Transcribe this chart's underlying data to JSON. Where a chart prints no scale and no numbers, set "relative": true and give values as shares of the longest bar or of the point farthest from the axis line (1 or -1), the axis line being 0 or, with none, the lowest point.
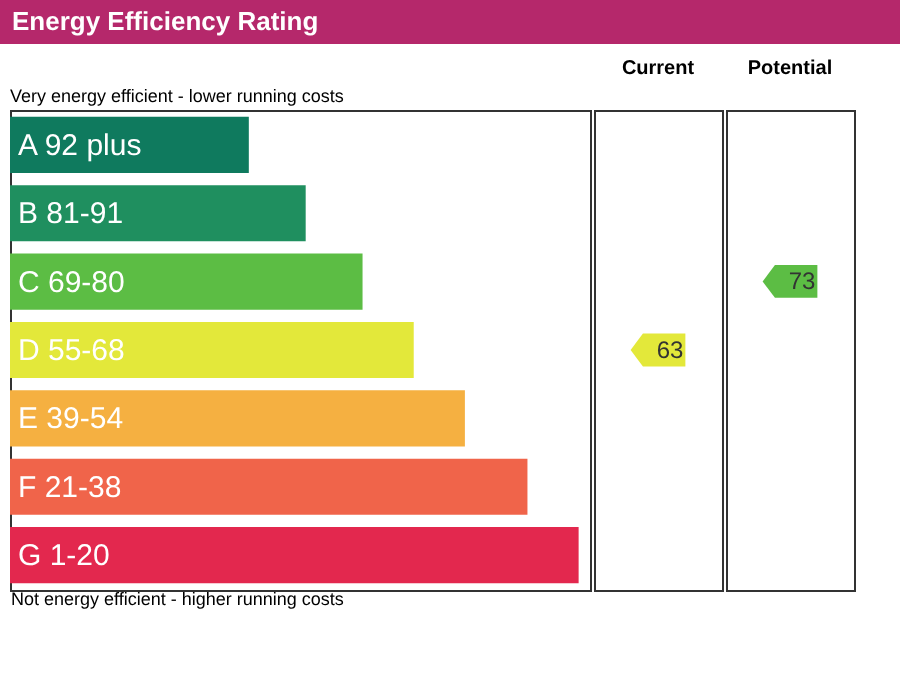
{
  "chart_data": {
    "type": "bar",
    "orientation": "horizontal",
    "relative": true,
    "title": "Energy Efficiency Rating",
    "categories": [
      "A 92 plus",
      "B 81-91",
      "C 69-80",
      "D 55-68",
      "E 39-54",
      "F 21-38",
      "G 1-20"
    ],
    "values": [
      0.42,
      0.52,
      0.62,
      0.71,
      0.8,
      0.91,
      1
    ],
    "colors": [
      "#0f7a5e",
      "#1f8f5f",
      "#5cbd44",
      "#e3e83a",
      "#f5b041",
      "#f0644a",
      "#e3284e"
    ],
    "annotations": [
      "Very energy efficient - lower running costs",
      "Not energy efficient - higher running costs",
      "Current",
      "Potential",
      "63",
      "73"
    ]
  }
}
